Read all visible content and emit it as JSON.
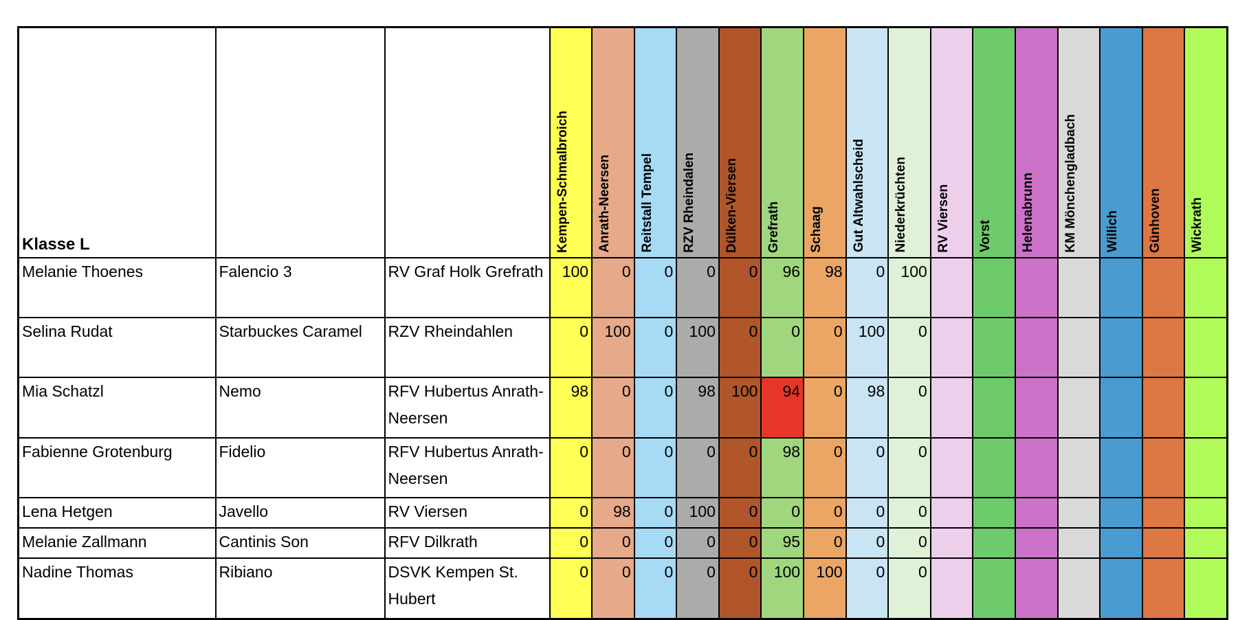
{
  "header": {
    "class_label": "Klasse L",
    "clubs": [
      {
        "name": "Kempen-Schmalbroich",
        "color": "#FFFF55"
      },
      {
        "name": "Anrath-Neersen",
        "color": "#E6A98A"
      },
      {
        "name": "Reitstall Tempel",
        "color": "#A6DAF5"
      },
      {
        "name": "RZV Rheindalen",
        "color": "#ABABAB"
      },
      {
        "name": "Dülken-Viersen",
        "color": "#B0562A"
      },
      {
        "name": "Grefrath",
        "color": "#A0D77E"
      },
      {
        "name": "Schaag",
        "color": "#EBA665"
      },
      {
        "name": "Gut Altwahlscheid",
        "color": "#C9E5F3"
      },
      {
        "name": "Niederkrüchten",
        "color": "#DFF1D6"
      },
      {
        "name": "RV Viersen",
        "color": "#EBCFEB"
      },
      {
        "name": "Vorst",
        "color": "#6DCB6B"
      },
      {
        "name": "Helenabrunn",
        "color": "#CC72C8"
      },
      {
        "name": "KM Mönchengladbach",
        "color": "#D9D9D9"
      },
      {
        "name": "Willich",
        "color": "#4A9BD0"
      },
      {
        "name": "Günhoven",
        "color": "#DD7744"
      },
      {
        "name": "Wickrath",
        "color": "#B1FB5A"
      }
    ]
  },
  "highlight_color": "#E8352A",
  "rows": [
    {
      "rider": "Melanie Thoenes",
      "horse": "Falencio 3",
      "club": "RV Graf Holk Grefrath",
      "scores": [
        "100",
        "0",
        "0",
        "0",
        "0",
        "96",
        "98",
        "0",
        "100",
        "",
        "",
        "",
        "",
        "",
        "",
        ""
      ]
    },
    {
      "rider": "Selina Rudat",
      "horse": "Starbuckes Caramel",
      "club": "RZV Rheindahlen",
      "scores": [
        "0",
        "100",
        "0",
        "100",
        "0",
        "0",
        "0",
        "100",
        "0",
        "",
        "",
        "",
        "",
        "",
        "",
        ""
      ]
    },
    {
      "rider": "Mia Schatzl",
      "horse": "Nemo",
      "club": "RFV Hubertus Anrath-Neersen",
      "scores": [
        "98",
        "0",
        "0",
        "98",
        "100",
        "94",
        "0",
        "98",
        "0",
        "",
        "",
        "",
        "",
        "",
        "",
        ""
      ],
      "highlight": [
        5
      ]
    },
    {
      "rider": "Fabienne Grotenburg",
      "horse": "Fidelio",
      "club": "RFV Hubertus Anrath-Neersen",
      "scores": [
        "0",
        "0",
        "0",
        "0",
        "0",
        "98",
        "0",
        "0",
        "0",
        "",
        "",
        "",
        "",
        "",
        "",
        ""
      ]
    },
    {
      "rider": "Lena Hetgen",
      "horse": "Javello",
      "club": "RV Viersen",
      "scores": [
        "0",
        "98",
        "0",
        "100",
        "0",
        "0",
        "0",
        "0",
        "0",
        "",
        "",
        "",
        "",
        "",
        "",
        ""
      ]
    },
    {
      "rider": "Melanie Zallmann",
      "horse": "Cantinis Son",
      "club": "RFV Dilkrath",
      "scores": [
        "0",
        "0",
        "0",
        "0",
        "0",
        "95",
        "0",
        "0",
        "0",
        "",
        "",
        "",
        "",
        "",
        "",
        ""
      ]
    },
    {
      "rider": "Nadine Thomas",
      "horse": "Ribiano",
      "club": "DSVK Kempen St. Hubert",
      "scores": [
        "0",
        "0",
        "0",
        "0",
        "0",
        "100",
        "100",
        "0",
        "0",
        "",
        "",
        "",
        "",
        "",
        "",
        ""
      ]
    }
  ]
}
